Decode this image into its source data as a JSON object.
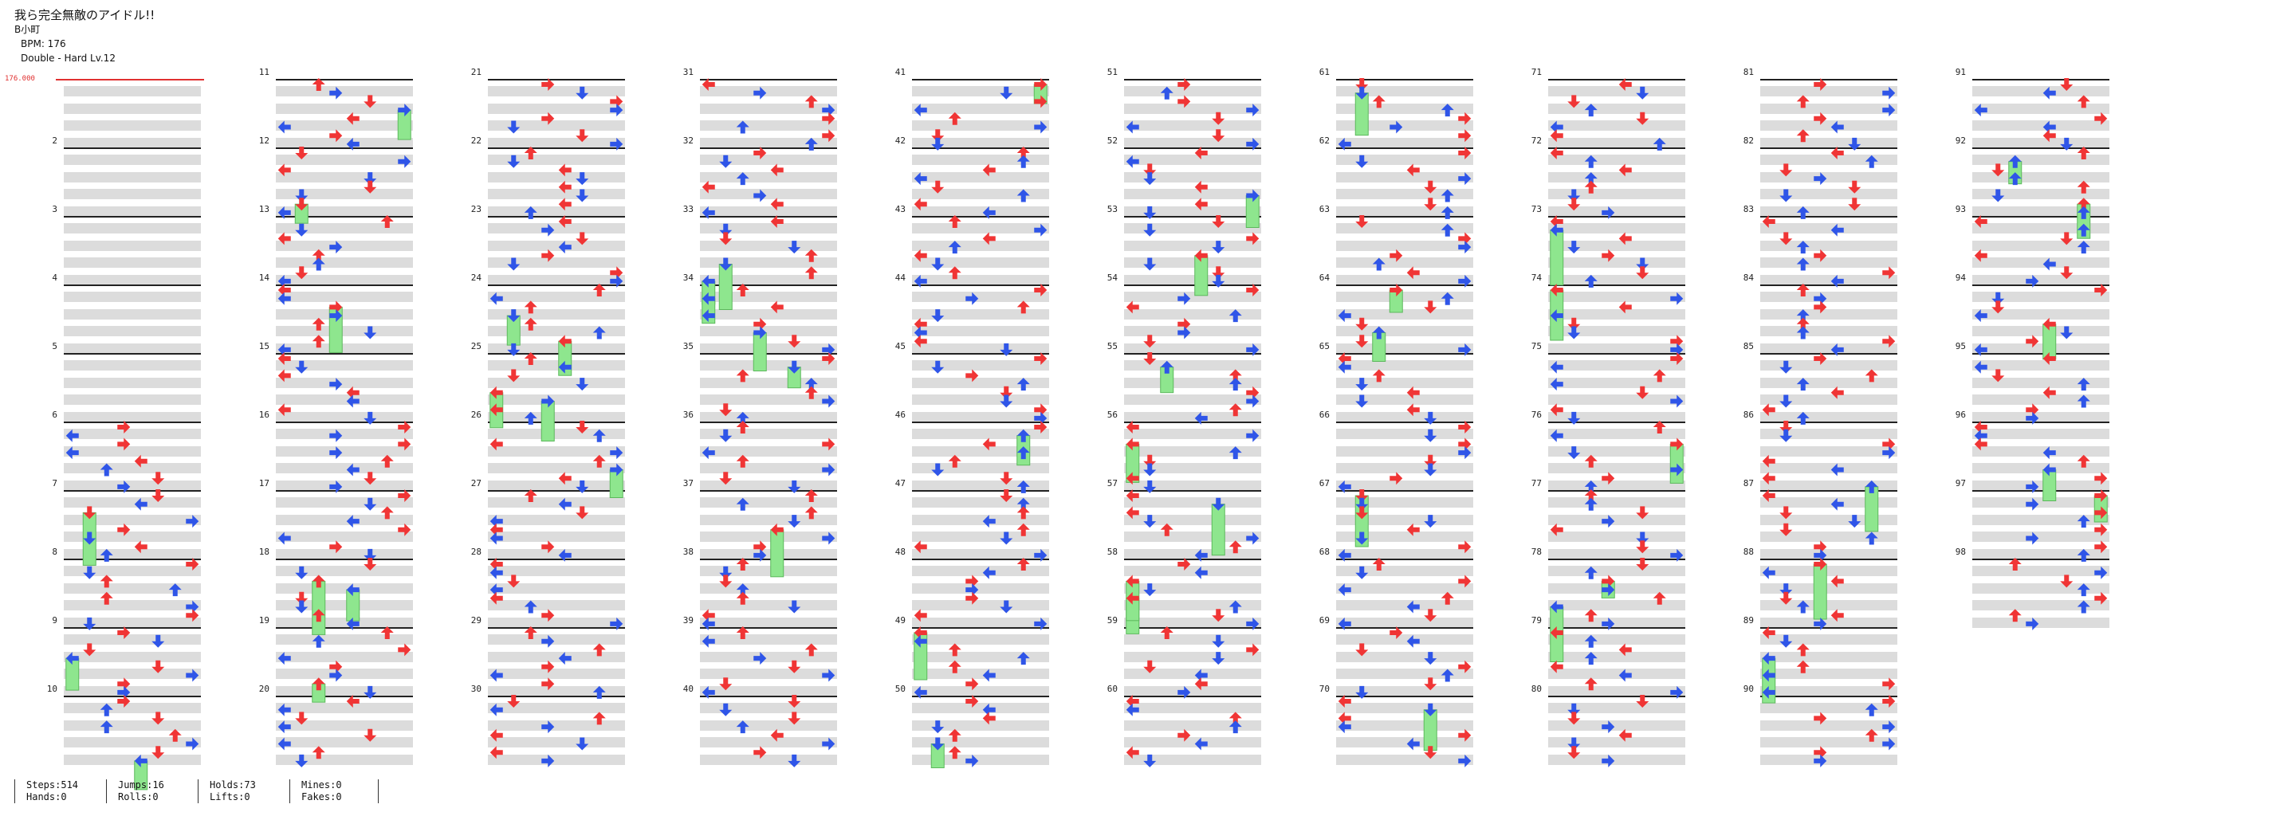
{
  "song": {
    "title": "我ら完全無敵のアイドル!!",
    "artist": "B小町",
    "bpm_label": "BPM: 176",
    "difficulty_label": "Double - Hard Lv.12"
  },
  "bpm_marker": "176.000",
  "colors": {
    "red": "#f03535",
    "blue": "#2f55e8",
    "hold": "#8ee68e",
    "mine": "#f5d020",
    "band": "#dcdcdc"
  },
  "measures": {
    "count": 98,
    "labels": [
      "2",
      "3",
      "4",
      "5",
      "6",
      "7",
      "8",
      "9",
      "10",
      "11",
      "12",
      "13",
      "14",
      "15",
      "16",
      "17",
      "18",
      "19",
      "20",
      "21",
      "22",
      "23",
      "24",
      "25",
      "26",
      "27",
      "28",
      "29",
      "30",
      "31",
      "32",
      "33",
      "34",
      "35",
      "36",
      "37",
      "38",
      "39",
      "40",
      "41",
      "42",
      "43",
      "44",
      "45",
      "46",
      "47",
      "48",
      "49",
      "50",
      "51",
      "52",
      "53",
      "54",
      "55",
      "56",
      "57",
      "58",
      "59",
      "60",
      "61",
      "62",
      "63",
      "64",
      "65",
      "66",
      "67",
      "68",
      "69",
      "70",
      "71",
      "72",
      "73",
      "74",
      "75",
      "76",
      "77",
      "78",
      "79",
      "80",
      "81",
      "82",
      "83",
      "84",
      "85",
      "86",
      "87",
      "88",
      "89",
      "90",
      "91",
      "92",
      "93",
      "94",
      "95",
      "96",
      "97",
      "98"
    ]
  },
  "stats": {
    "steps": "Steps:514",
    "hands": "Hands:0",
    "jumps": "Jumps:16",
    "rolls": "Rolls:0",
    "holds": "Holds:73",
    "lifts": "Lifts:0",
    "mines": "Mines:0",
    "fakes": "Fakes:0"
  }
}
